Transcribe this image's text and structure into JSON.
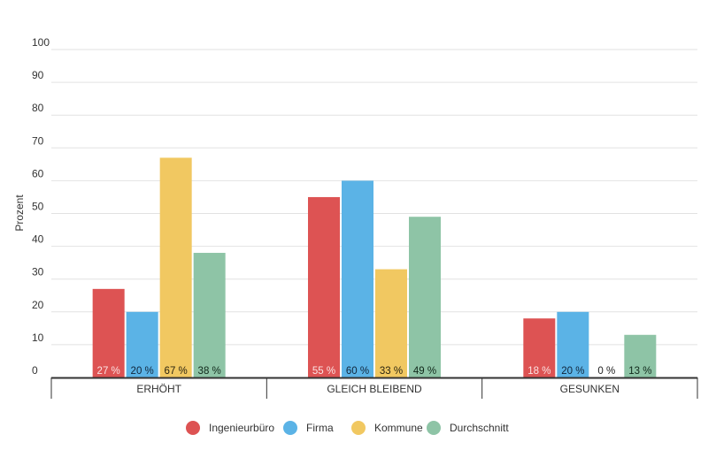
{
  "chart_data": {
    "type": "bar",
    "title": "",
    "xlabel": "",
    "ylabel": "Prozent",
    "ylim": [
      0,
      100
    ],
    "yticks": [
      0,
      10,
      20,
      30,
      40,
      50,
      60,
      70,
      80,
      90,
      100
    ],
    "grid": true,
    "legend_position": "bottom",
    "categories": [
      "ERHÖHT",
      "GLEICH BLEIBEND",
      "GESUNKEN"
    ],
    "value_suffix": " %",
    "series": [
      {
        "name": "Ingenieurbüro",
        "color": "#dd5353",
        "label_color": "#fbe3e3",
        "values": [
          27,
          55,
          18
        ]
      },
      {
        "name": "Firma",
        "color": "#5bb3e6",
        "label_color": "#10253a",
        "values": [
          20,
          60,
          20
        ]
      },
      {
        "name": "Kommune",
        "color": "#f1c861",
        "label_color": "#2a2410",
        "values": [
          67,
          33,
          0
        ]
      },
      {
        "name": "Durchschnitt",
        "color": "#8ec4a6",
        "label_color": "#10281a",
        "values": [
          38,
          49,
          13
        ]
      }
    ]
  }
}
